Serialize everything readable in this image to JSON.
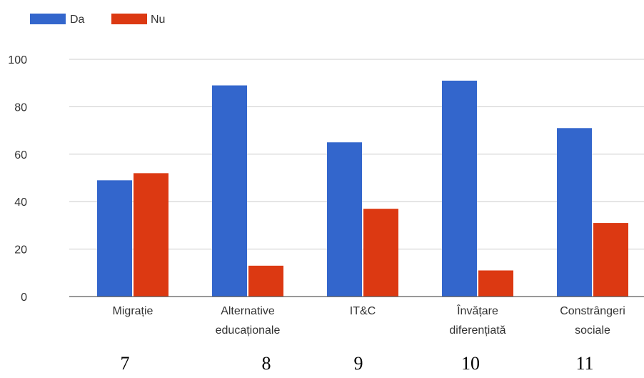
{
  "chart_data": {
    "type": "bar",
    "categories": [
      [
        "Migrație"
      ],
      [
        "Alternative",
        "educaționale"
      ],
      [
        "IT&C"
      ],
      [
        "Învățare",
        "diferențiată"
      ],
      [
        "Constrângeri",
        "sociale"
      ]
    ],
    "series": [
      {
        "name": "Da",
        "color": "#3366cc",
        "values": [
          49,
          89,
          65,
          91,
          71
        ]
      },
      {
        "name": "Nu",
        "color": "#dc3912",
        "values": [
          52,
          13,
          37,
          11,
          31
        ]
      }
    ],
    "ylim": [
      0,
      100
    ],
    "yticks": [
      0,
      20,
      40,
      60,
      80,
      100
    ],
    "grid": true,
    "legend_position": "top-left"
  },
  "footer_numbers": [
    "7",
    "8",
    "9",
    "10",
    "11"
  ]
}
